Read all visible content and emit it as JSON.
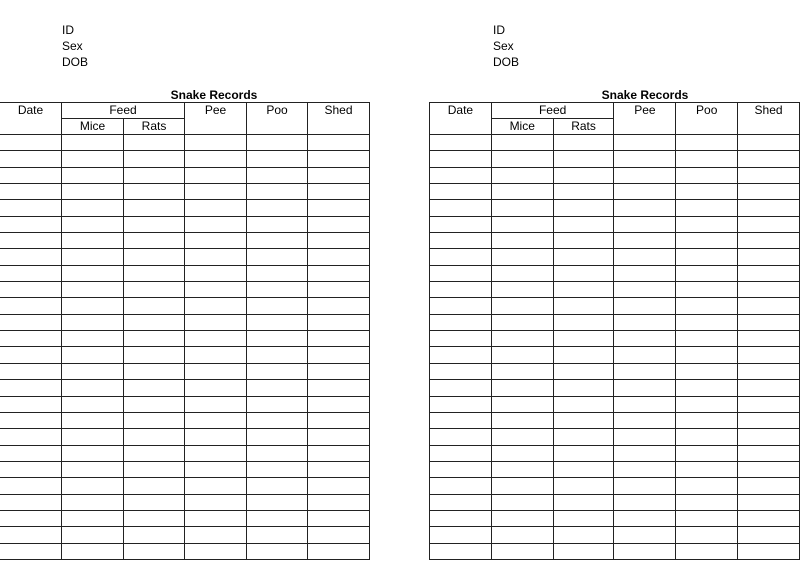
{
  "sheets": [
    {
      "labels": [
        "ID",
        "Sex",
        "DOB"
      ],
      "title": "Snake Records",
      "headers": {
        "date": "Date",
        "feed": "Feed",
        "mice": "Mice",
        "rats": "Rats",
        "pee": "Pee",
        "poo": "Poo",
        "shed": "Shed"
      }
    },
    {
      "labels": [
        "ID",
        "Sex",
        "DOB"
      ],
      "title": "Snake Records",
      "headers": {
        "date": "Date",
        "feed": "Feed",
        "mice": "Mice",
        "rats": "Rats",
        "pee": "Pee",
        "poo": "Poo",
        "shed": "Shed"
      }
    }
  ]
}
